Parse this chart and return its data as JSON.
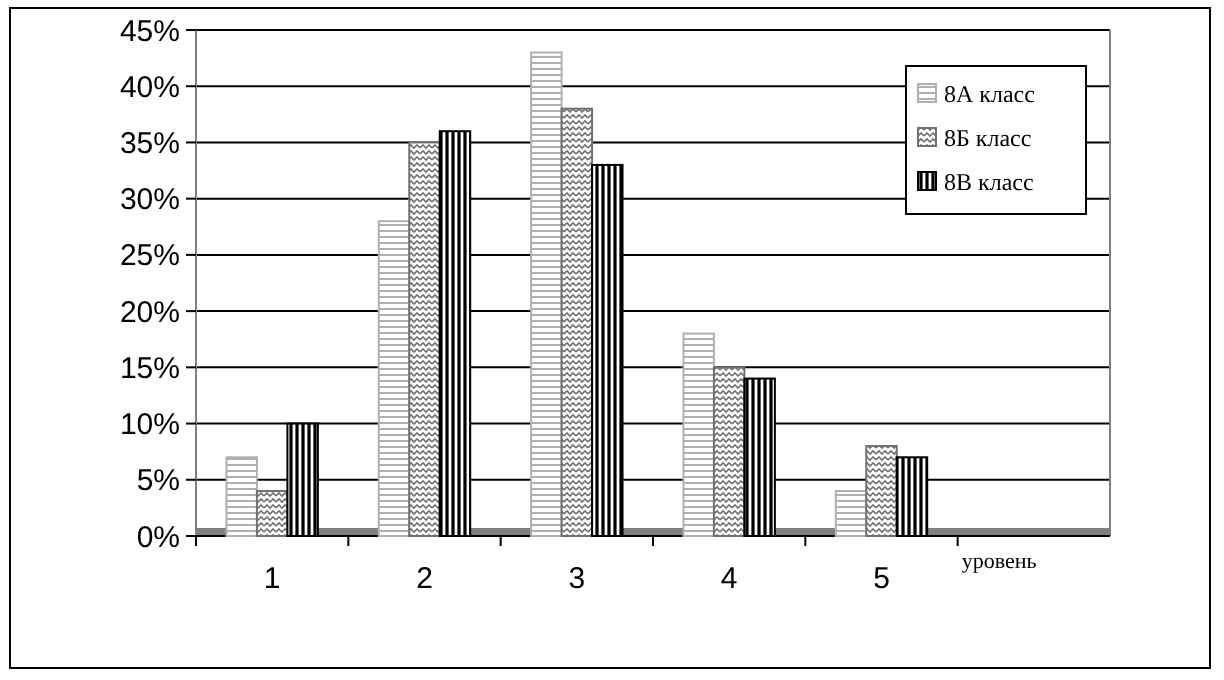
{
  "chart_data": {
    "type": "bar",
    "xlabel": "уровень",
    "categories": [
      "1",
      "2",
      "3",
      "4",
      "5"
    ],
    "series": [
      {
        "name": "8А класс",
        "color": "#b0b0b0",
        "values": [
          7,
          28,
          43,
          18,
          4
        ]
      },
      {
        "name": "8Б класс",
        "color": "#707070",
        "values": [
          4,
          35,
          38,
          15,
          8
        ]
      },
      {
        "name": "8В класс",
        "color": "#000000",
        "values": [
          10,
          36,
          33,
          14,
          7
        ]
      }
    ],
    "ylim": [
      0,
      45
    ],
    "yticks": [
      {
        "value": 0,
        "label": "0%"
      },
      {
        "value": 5,
        "label": "5%"
      },
      {
        "value": 10,
        "label": "10%"
      },
      {
        "value": 15,
        "label": "15%"
      },
      {
        "value": 20,
        "label": "20%"
      },
      {
        "value": 25,
        "label": "25%"
      },
      {
        "value": 30,
        "label": "30%"
      },
      {
        "value": 35,
        "label": "35%"
      },
      {
        "value": 40,
        "label": "40%"
      },
      {
        "value": 45,
        "label": "45%"
      }
    ],
    "grid": "y",
    "legend": "top right"
  }
}
